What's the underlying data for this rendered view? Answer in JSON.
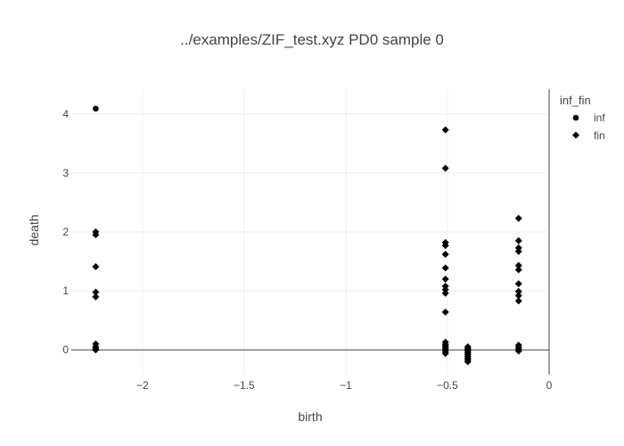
{
  "chart_data": {
    "type": "scatter",
    "title": "../examples/ZIF_test.xyz PD0 sample 0",
    "xlabel": "birth",
    "ylabel": "death",
    "xlim": [
      -2.35,
      0.0
    ],
    "ylim": [
      -0.42,
      4.42
    ],
    "xticks": [
      -2,
      -1.5,
      -1,
      -0.5,
      0
    ],
    "xtick_labels": [
      "−2",
      "−1.5",
      "−1",
      "−0.5",
      "0"
    ],
    "yticks": [
      0,
      1,
      2,
      3,
      4
    ],
    "ytick_labels": [
      "0",
      "1",
      "2",
      "3",
      "4"
    ],
    "grid": true,
    "legend": {
      "title": "inf_fin",
      "placement": "top-right outside"
    },
    "series": [
      {
        "name": "inf",
        "marker": "circle",
        "color": "#000000",
        "points": [
          [
            -2.23,
            4.09
          ]
        ]
      },
      {
        "name": "fin",
        "marker": "diamond",
        "color": "#000000",
        "points": [
          [
            -2.23,
            2.0
          ],
          [
            -2.23,
            1.95
          ],
          [
            -2.23,
            1.41
          ],
          [
            -2.23,
            0.98
          ],
          [
            -2.23,
            0.9
          ],
          [
            -2.23,
            0.1
          ],
          [
            -2.23,
            0.05
          ],
          [
            -2.23,
            0.02
          ],
          [
            -2.23,
            0.0
          ],
          [
            -0.51,
            3.73
          ],
          [
            -0.51,
            3.08
          ],
          [
            -0.51,
            1.82
          ],
          [
            -0.51,
            1.77
          ],
          [
            -0.51,
            1.62
          ],
          [
            -0.51,
            1.39
          ],
          [
            -0.51,
            1.2
          ],
          [
            -0.51,
            1.08
          ],
          [
            -0.51,
            1.02
          ],
          [
            -0.51,
            0.96
          ],
          [
            -0.51,
            0.64
          ],
          [
            -0.51,
            0.13
          ],
          [
            -0.51,
            0.09
          ],
          [
            -0.51,
            0.06
          ],
          [
            -0.51,
            0.03
          ],
          [
            -0.51,
            0.0
          ],
          [
            -0.51,
            -0.03
          ],
          [
            -0.51,
            -0.06
          ],
          [
            -0.4,
            0.05
          ],
          [
            -0.4,
            0.02
          ],
          [
            -0.4,
            0.0
          ],
          [
            -0.4,
            -0.02
          ],
          [
            -0.4,
            -0.05
          ],
          [
            -0.4,
            -0.08
          ],
          [
            -0.4,
            -0.11
          ],
          [
            -0.4,
            -0.14
          ],
          [
            -0.4,
            -0.17
          ],
          [
            -0.4,
            -0.2
          ],
          [
            -0.15,
            2.23
          ],
          [
            -0.15,
            1.85
          ],
          [
            -0.15,
            1.73
          ],
          [
            -0.15,
            1.67
          ],
          [
            -0.15,
            1.43
          ],
          [
            -0.15,
            1.36
          ],
          [
            -0.15,
            1.12
          ],
          [
            -0.15,
            0.99
          ],
          [
            -0.15,
            0.92
          ],
          [
            -0.15,
            0.83
          ],
          [
            -0.15,
            0.08
          ],
          [
            -0.15,
            0.04
          ],
          [
            -0.15,
            0.01
          ],
          [
            -0.15,
            -0.02
          ]
        ]
      }
    ]
  }
}
